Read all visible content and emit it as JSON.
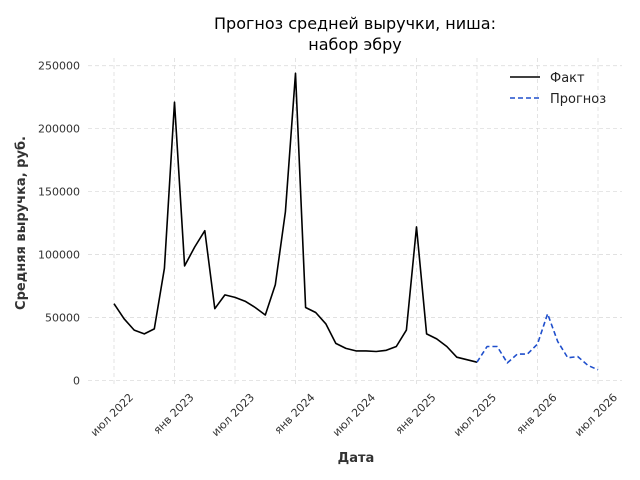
{
  "chart_data": {
    "type": "line",
    "title": [
      "Прогноз средней выручки, ниша:",
      "набор эбру"
    ],
    "xlabel": "Дата",
    "ylabel": "Средняя выручка, руб.",
    "ylim": [
      0,
      250000
    ],
    "y_ticks": [
      0,
      50000,
      100000,
      150000,
      200000,
      250000
    ],
    "y_tick_labels": [
      "0",
      "50000",
      "100000",
      "150000",
      "200000",
      "250000"
    ],
    "x_ticks": [
      "2022-07",
      "2023-01",
      "2023-07",
      "2024-01",
      "2024-07",
      "2025-01",
      "2025-07",
      "2026-01",
      "2026-07"
    ],
    "x_tick_labels": [
      "июл 2022",
      "янв 2023",
      "июл 2023",
      "янв 2024",
      "июл 2024",
      "янв 2025",
      "июл 2025",
      "янв 2026",
      "июл 2026"
    ],
    "grid": true,
    "legend_position": "top-right",
    "series": [
      {
        "name": "Факт",
        "color": "#000000",
        "style": "solid",
        "x": [
          "2022-07",
          "2022-08",
          "2022-09",
          "2022-10",
          "2022-11",
          "2022-12",
          "2023-01",
          "2023-02",
          "2023-03",
          "2023-04",
          "2023-05",
          "2023-06",
          "2023-07",
          "2023-08",
          "2023-09",
          "2023-10",
          "2023-11",
          "2023-12",
          "2024-01",
          "2024-02",
          "2024-03",
          "2024-04",
          "2024-05",
          "2024-06",
          "2024-07",
          "2024-08",
          "2024-09",
          "2024-10",
          "2024-11",
          "2024-12",
          "2025-01",
          "2025-02",
          "2025-03",
          "2025-04",
          "2025-05",
          "2025-06",
          "2025-07"
        ],
        "y": [
          61000,
          49000,
          40000,
          37000,
          41000,
          89000,
          221000,
          91000,
          106000,
          119000,
          57000,
          68000,
          66000,
          63000,
          58000,
          52000,
          76000,
          134000,
          244000,
          58000,
          54000,
          45000,
          29500,
          25500,
          23500,
          23500,
          23000,
          24000,
          27000,
          40000,
          122000,
          37000,
          33000,
          27000,
          18500,
          16500,
          14500
        ]
      },
      {
        "name": "Прогноз",
        "color": "#1f4fcc",
        "style": "dashed",
        "x": [
          "2025-07",
          "2025-08",
          "2025-09",
          "2025-10",
          "2025-11",
          "2025-12",
          "2026-01",
          "2026-02",
          "2026-03",
          "2026-04",
          "2026-05",
          "2026-06",
          "2026-07"
        ],
        "y": [
          14500,
          27000,
          27000,
          14000,
          21000,
          21000,
          29000,
          53000,
          31000,
          18000,
          19000,
          12000,
          8500
        ]
      }
    ]
  }
}
